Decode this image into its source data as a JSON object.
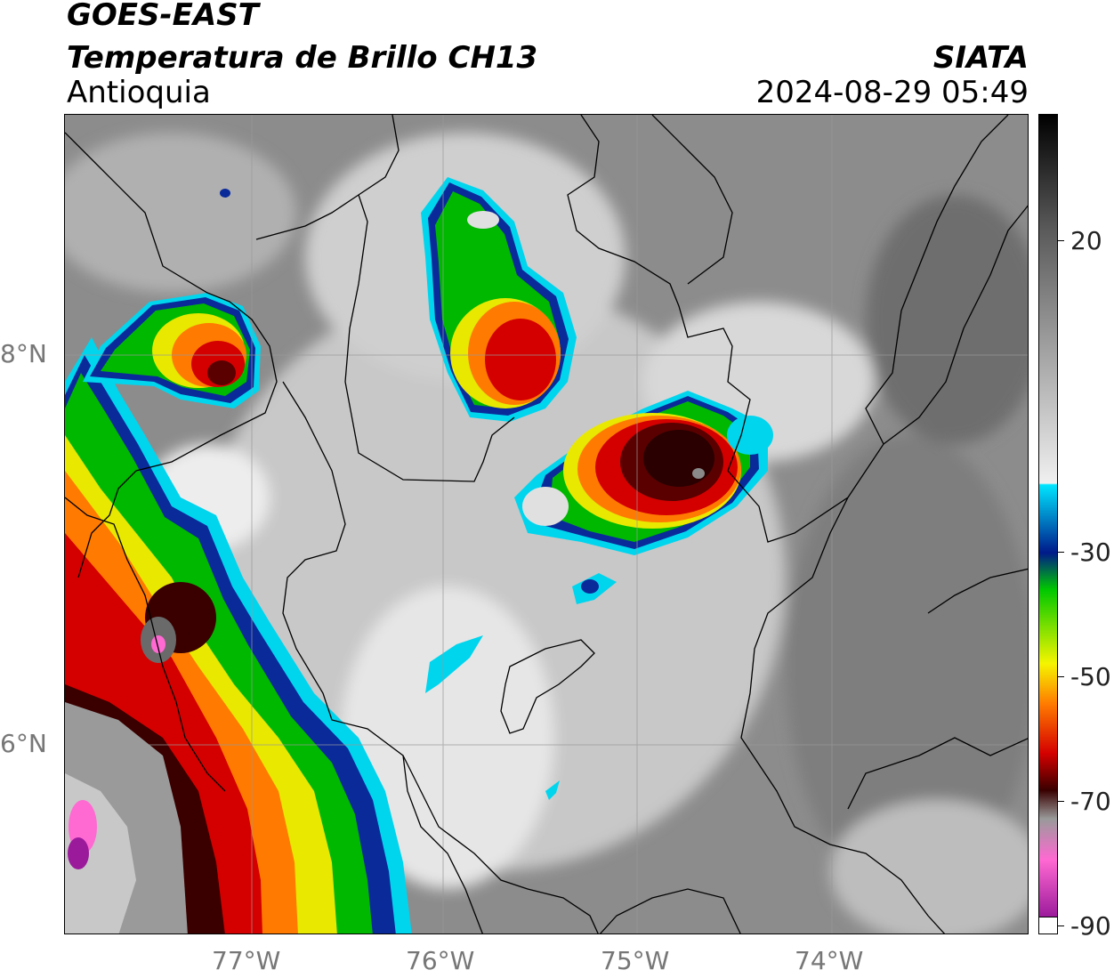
{
  "header": {
    "satellite": "GOES-EAST",
    "product": "Temperatura de Brillo CH13",
    "region": "Antioquia",
    "org": "SIATA",
    "datetime": "2024-08-29 05:49"
  },
  "map": {
    "lon_ticks": [
      "77°W",
      "76°W",
      "75°W",
      "74°W"
    ],
    "lat_ticks": [
      "8°N",
      "6°N"
    ]
  },
  "colorbar": {
    "ticks": [
      "20",
      "-30",
      "-50",
      "-70",
      "-90"
    ],
    "stops": [
      {
        "color": "#000000"
      },
      {
        "color": "#5a5a5a"
      },
      {
        "color": "#f0f0f0"
      },
      {
        "color": "#00e5ff"
      },
      {
        "color": "#001a8a"
      },
      {
        "color": "#00c800"
      },
      {
        "color": "#f5f500"
      },
      {
        "color": "#ff7a00"
      },
      {
        "color": "#d40000"
      },
      {
        "color": "#3a0000"
      },
      {
        "color": "#9a9a9a"
      },
      {
        "color": "#ff69d2"
      },
      {
        "color": "#9b1a9b"
      }
    ]
  }
}
